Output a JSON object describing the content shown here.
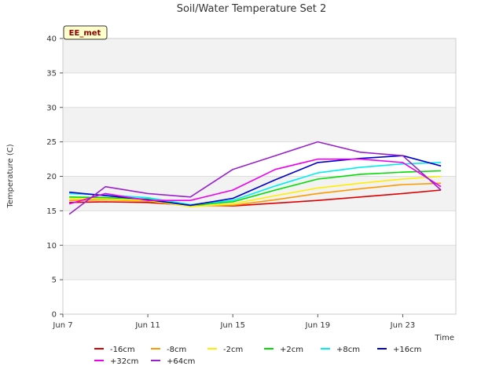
{
  "chart_data": {
    "type": "line",
    "title": "Soil/Water Temperature Set 2",
    "xlabel": "Time",
    "ylabel": "Temperature (C)",
    "badge": "EE_met",
    "ylim": [
      0,
      40
    ],
    "yticks": [
      0,
      5,
      10,
      15,
      20,
      25,
      30,
      35,
      40
    ],
    "xlim": [
      7,
      25.5
    ],
    "xticks": [
      {
        "day": 7,
        "label": "Jun 7"
      },
      {
        "day": 11,
        "label": "Jun 11"
      },
      {
        "day": 15,
        "label": "Jun 15"
      },
      {
        "day": 19,
        "label": "Jun 19"
      },
      {
        "day": 23,
        "label": "Jun 23"
      }
    ],
    "grid": "horizontal bands",
    "legend_position": "bottom",
    "series": [
      {
        "name": "-16cm",
        "color": "#dd0000",
        "x": [
          7.3,
          9,
          11,
          13,
          15,
          17,
          19,
          21,
          23,
          24.8
        ],
        "y": [
          16.2,
          16.3,
          16.2,
          15.8,
          15.7,
          16.1,
          16.5,
          17.0,
          17.5,
          18.0
        ]
      },
      {
        "name": "-8cm",
        "color": "#ff9900",
        "x": [
          7.3,
          9,
          11,
          13,
          15,
          17,
          19,
          21,
          23,
          24.8
        ],
        "y": [
          16.5,
          16.6,
          16.4,
          15.7,
          15.8,
          16.6,
          17.5,
          18.2,
          18.8,
          19.0
        ]
      },
      {
        "name": "-2cm",
        "color": "#ffee00",
        "x": [
          7.3,
          9,
          11,
          13,
          15,
          17,
          19,
          21,
          23,
          24.8
        ],
        "y": [
          16.8,
          16.7,
          16.5,
          15.6,
          16.0,
          17.2,
          18.3,
          19.0,
          19.6,
          20.0
        ]
      },
      {
        "name": "+2cm",
        "color": "#00dd00",
        "x": [
          7.3,
          9,
          11,
          13,
          15,
          17,
          19,
          21,
          23,
          24.8
        ],
        "y": [
          17.0,
          16.9,
          16.7,
          15.8,
          16.3,
          18.0,
          19.6,
          20.3,
          20.6,
          20.8
        ]
      },
      {
        "name": "+8cm",
        "color": "#00eeee",
        "x": [
          7.3,
          9,
          11,
          13,
          15,
          17,
          19,
          21,
          23,
          24.8
        ],
        "y": [
          17.5,
          17.3,
          16.9,
          15.9,
          16.5,
          18.6,
          20.5,
          21.3,
          21.8,
          22.0
        ]
      },
      {
        "name": "+16cm",
        "color": "#0000cc",
        "x": [
          7.3,
          9,
          11,
          13,
          15,
          17,
          19,
          21,
          23,
          24.8
        ],
        "y": [
          17.7,
          17.2,
          16.6,
          15.8,
          16.8,
          19.5,
          22.0,
          22.6,
          23.0,
          21.5
        ]
      },
      {
        "name": "+32cm",
        "color": "#ee00ee",
        "x": [
          7.3,
          9,
          11,
          13,
          15,
          17,
          19,
          21,
          23,
          24.8
        ],
        "y": [
          16.0,
          17.5,
          16.5,
          16.5,
          18.0,
          21.0,
          22.5,
          22.5,
          22.0,
          18.5
        ]
      },
      {
        "name": "+64cm",
        "color": "#9922cc",
        "x": [
          7.3,
          9,
          11,
          13,
          15,
          17,
          19,
          21,
          23,
          24.8
        ],
        "y": [
          14.5,
          18.5,
          17.5,
          17.0,
          21.0,
          23.0,
          25.0,
          23.5,
          23.0,
          18.0
        ]
      }
    ]
  }
}
